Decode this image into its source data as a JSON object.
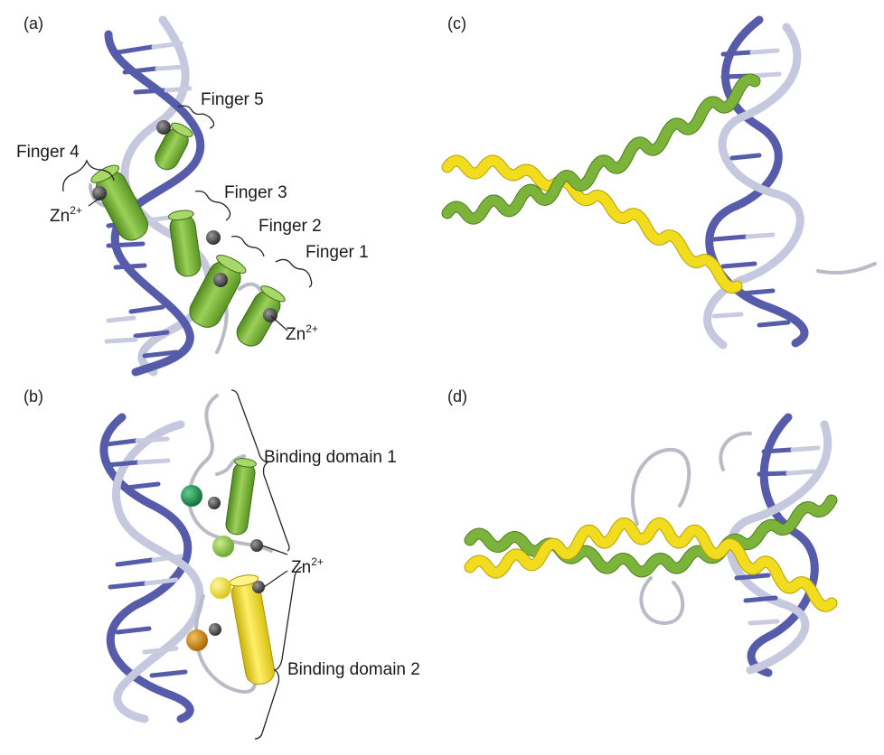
{
  "panels": {
    "a": {
      "label": "(a)",
      "fingers": [
        "Finger 1",
        "Finger 2",
        "Finger 3",
        "Finger 4",
        "Finger 5"
      ],
      "zn_labels": [
        "Zn",
        "Zn"
      ],
      "zn_charge": "2+"
    },
    "b": {
      "label": "(b)",
      "domains": [
        "Binding domain 1",
        "Binding domain 2"
      ],
      "zn_label": "Zn",
      "zn_charge": "2+"
    },
    "c": {
      "label": "(c)"
    },
    "d": {
      "label": "(d)"
    }
  },
  "colors": {
    "dna_strand_dark": "#575caa",
    "dna_strand_light": "#c5c8de",
    "helix_green": "#7cb33a",
    "helix_yellow": "#f2dc1e",
    "zinc_ion": "#3a3a3a",
    "sphere_green": "#1f8a4c",
    "sphere_lightgreen": "#8fc44a",
    "sphere_yellow": "#f4e21a",
    "sphere_orange": "#d28a1a"
  },
  "icons": {
    "cylinder": "alpha-helix-cylinder",
    "sphere": "zinc-ion-sphere",
    "ribbon": "alpha-helix-ribbon"
  }
}
